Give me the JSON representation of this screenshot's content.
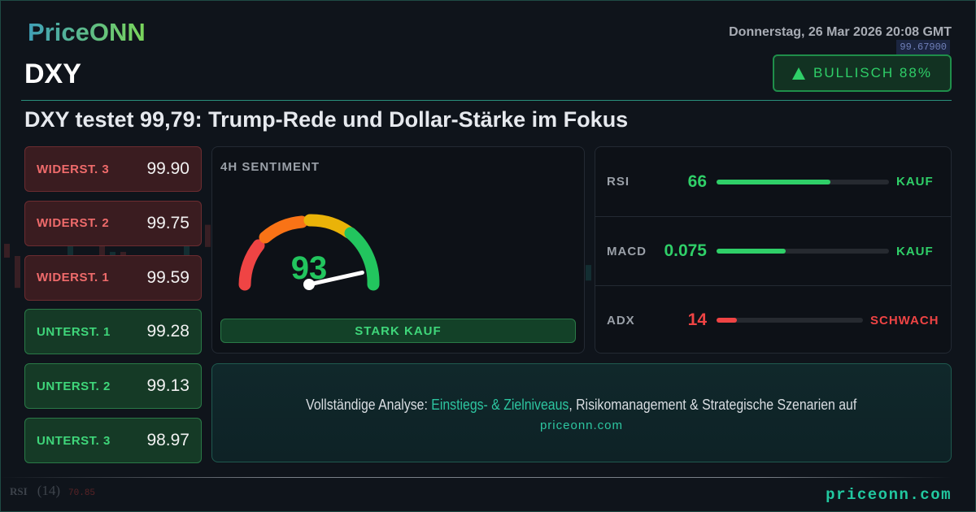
{
  "brand": {
    "logo": "PriceONN",
    "footer_url": "priceonn.com"
  },
  "header": {
    "date": "Donnerstag, 26 Mar 2026 20:08 GMT",
    "symbol": "DXY",
    "price_tag": "99.67900"
  },
  "badge": {
    "label": "BULLISCH 88%",
    "direction": "up",
    "color": "#2fcf68"
  },
  "headline": "DXY testet 99,79: Trump-Rede und Dollar-Stärke im Fokus",
  "levels": [
    {
      "label": "WIDERST. 3",
      "value": "99.90",
      "type": "resistance"
    },
    {
      "label": "WIDERST. 2",
      "value": "99.75",
      "type": "resistance"
    },
    {
      "label": "WIDERST. 1",
      "value": "99.59",
      "type": "resistance"
    },
    {
      "label": "UNTERST. 1",
      "value": "99.28",
      "type": "support"
    },
    {
      "label": "UNTERST. 2",
      "value": "99.13",
      "type": "support"
    },
    {
      "label": "UNTERST. 3",
      "value": "98.97",
      "type": "support"
    }
  ],
  "sentiment": {
    "title": "4H SENTIMENT",
    "score": "93",
    "score_value": 93,
    "signal": "STARK KAUF"
  },
  "indicators": [
    {
      "name": "RSI",
      "value": "66",
      "fill_percent": 66,
      "signal": "KAUF",
      "color": "#2fcf68"
    },
    {
      "name": "MACD",
      "value": "0.075",
      "fill_percent": 40,
      "signal": "KAUF",
      "color": "#2fcf68"
    },
    {
      "name": "ADX",
      "value": "14",
      "fill_percent": 14,
      "signal": "SCHWACH",
      "color": "#ef4444"
    }
  ],
  "cta": {
    "prefix": "Vollständige Analyse: ",
    "highlight": "Einstiegs- & Zielniveaus",
    "suffix": ", Risikomanagement & Strategische Szenarien auf",
    "url": "priceonn.com"
  },
  "bg_indicator": {
    "name": "RSI",
    "period": "(14)",
    "value": "70.85"
  }
}
